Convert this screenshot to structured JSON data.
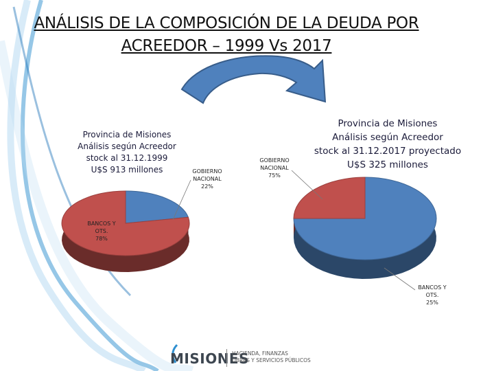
{
  "slide": {
    "title": "ANÁLISIS DE LA COMPOSICIÓN DE LA DEUDA POR ACREEDOR – 1999 Vs 2017",
    "title_line1": "ANÁLISIS DE LA COMPOSICIÓN DE LA DEUDA POR",
    "title_line2": "ACREEDOR – 1999 Vs 2017"
  },
  "chart_data": [
    {
      "type": "pie",
      "title_lines": [
        "Provincia de Misiones",
        "Análisis según Acreedor",
        "stock al 31.12.1999",
        "U$S 913 millones"
      ],
      "slices": [
        {
          "label": "GOBIERNO NACIONAL",
          "value": 22,
          "color": "#4f81bd"
        },
        {
          "label": "BANCOS Y OTS.",
          "value": 78,
          "color": "#c0504d"
        }
      ],
      "data_labels": [
        {
          "lines": [
            "GOBIERNO",
            "NACIONAL",
            "22%"
          ]
        },
        {
          "lines": [
            "BANCOS Y",
            "OTS.",
            "78%"
          ]
        }
      ]
    },
    {
      "type": "pie",
      "title_lines": [
        "Provincia de Misiones",
        "Análisis según Acreedor",
        "stock al 31.12.2017 proyectado",
        "U$S 325 millones"
      ],
      "slices": [
        {
          "label": "GOBIERNO NACIONAL",
          "value": 75,
          "color": "#4f81bd"
        },
        {
          "label": "BANCOS Y OTS.",
          "value": 25,
          "color": "#c0504d"
        }
      ],
      "data_labels": [
        {
          "lines": [
            "GOBIERNO",
            "NACIONAL",
            "75%"
          ]
        },
        {
          "lines": [
            "BANCOS Y",
            "OTS.",
            "25%"
          ]
        }
      ]
    }
  ],
  "footer": {
    "brand": "MISIONES",
    "subtitle_lines": [
      "HACIENDA, FINANZAS",
      "OBRAS Y SERVICIOS PÚBLICOS"
    ]
  },
  "colors": {
    "accent_blue": "#4f81bd",
    "accent_red": "#c0504d",
    "swirl": "#2e8fd0"
  }
}
